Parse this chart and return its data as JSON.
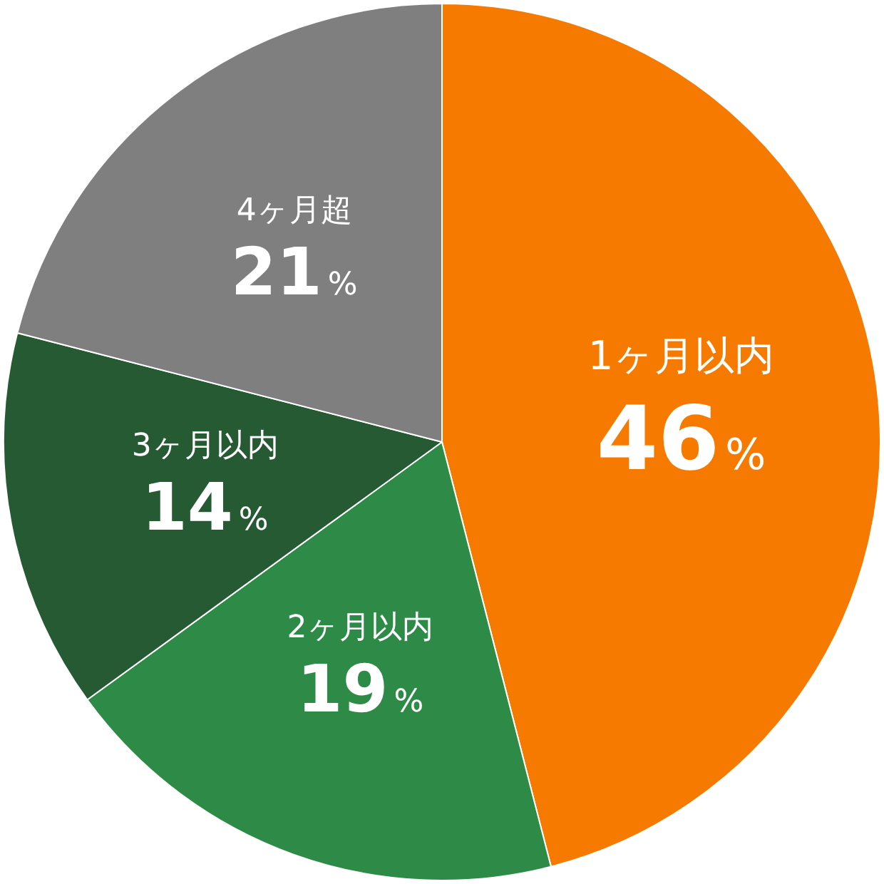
{
  "chart_data": {
    "type": "pie",
    "categories": [
      "1ヶ月以内",
      "2ヶ月以内",
      "3ヶ月以内",
      "4ヶ月超"
    ],
    "values": [
      46,
      19,
      14,
      21
    ],
    "colors": [
      "#f77a00",
      "#2e8b47",
      "#265a33",
      "#7f7f7f"
    ],
    "value_labels": [
      "46%",
      "19%",
      "14%",
      "21%"
    ],
    "legend": false
  }
}
